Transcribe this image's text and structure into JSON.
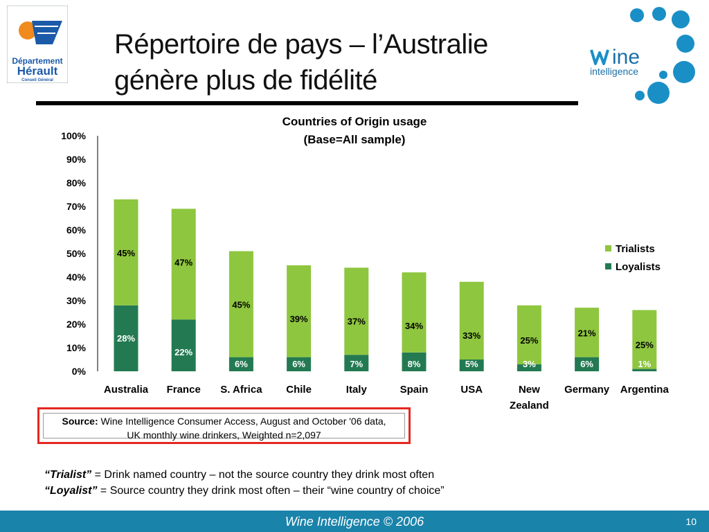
{
  "header": {
    "title_line1": "Répertoire de pays – l’Australie",
    "title_line2": "génère plus de fidélité",
    "logo_left_line1": "Département",
    "logo_left_line2": "Hérault",
    "logo_left_line3": "Conseil Général",
    "logo_right_word": "ine",
    "logo_right_sub": "intelligence"
  },
  "chart_data": {
    "type": "bar",
    "stacked": true,
    "title": "Countries of Origin usage",
    "subtitle": "(Base=All sample)",
    "categories": [
      "Australia",
      "France",
      "S. Africa",
      "Chile",
      "Italy",
      "Spain",
      "USA",
      "New Zealand",
      "Germany",
      "Argentina"
    ],
    "category_lines": [
      [
        "Australia"
      ],
      [
        "France"
      ],
      [
        "S. Africa"
      ],
      [
        "Chile"
      ],
      [
        "Italy"
      ],
      [
        "Spain"
      ],
      [
        "USA"
      ],
      [
        "New",
        "Zealand"
      ],
      [
        "Germany"
      ],
      [
        "Argentina"
      ]
    ],
    "series": [
      {
        "name": "Loyalists",
        "values": [
          28,
          22,
          6,
          6,
          7,
          8,
          5,
          3,
          6,
          1
        ],
        "labels": [
          "28%",
          "22%",
          "6%",
          "6%",
          "7%",
          "8%",
          "5%",
          "3%",
          "6%",
          "1%"
        ],
        "color": "#237a52"
      },
      {
        "name": "Trialists",
        "values": [
          45,
          47,
          45,
          39,
          37,
          34,
          33,
          25,
          21,
          25
        ],
        "labels": [
          "45%",
          "47%",
          "45%",
          "39%",
          "37%",
          "34%",
          "33%",
          "25%",
          "21%",
          "25%"
        ],
        "color": "#8ec63f"
      }
    ],
    "legend_order": [
      "Trialists",
      "Loyalists"
    ],
    "yticks": [
      "0%",
      "10%",
      "20%",
      "30%",
      "40%",
      "50%",
      "60%",
      "70%",
      "80%",
      "90%",
      "100%"
    ],
    "ylim": [
      0,
      100
    ],
    "legend_position": "right",
    "grid": false
  },
  "source": {
    "label": "Source:",
    "line1": " Wine Intelligence Consumer Access, August and October '06 data,",
    "line2": "UK monthly wine drinkers, Weighted n=2,097"
  },
  "definitions": [
    {
      "term": "“Trialist”",
      "text": " = Drink named country – not the source country they drink most often"
    },
    {
      "term": "“Loyalist”",
      "text": " = Source country they drink most often – their “wine country of choice”"
    }
  ],
  "footer": {
    "text": "Wine Intelligence © 2006",
    "page": "10"
  },
  "colors": {
    "footer_bg": "#1a83aa",
    "source_border": "#e52620",
    "logo_blue": "#1a8fc6"
  }
}
